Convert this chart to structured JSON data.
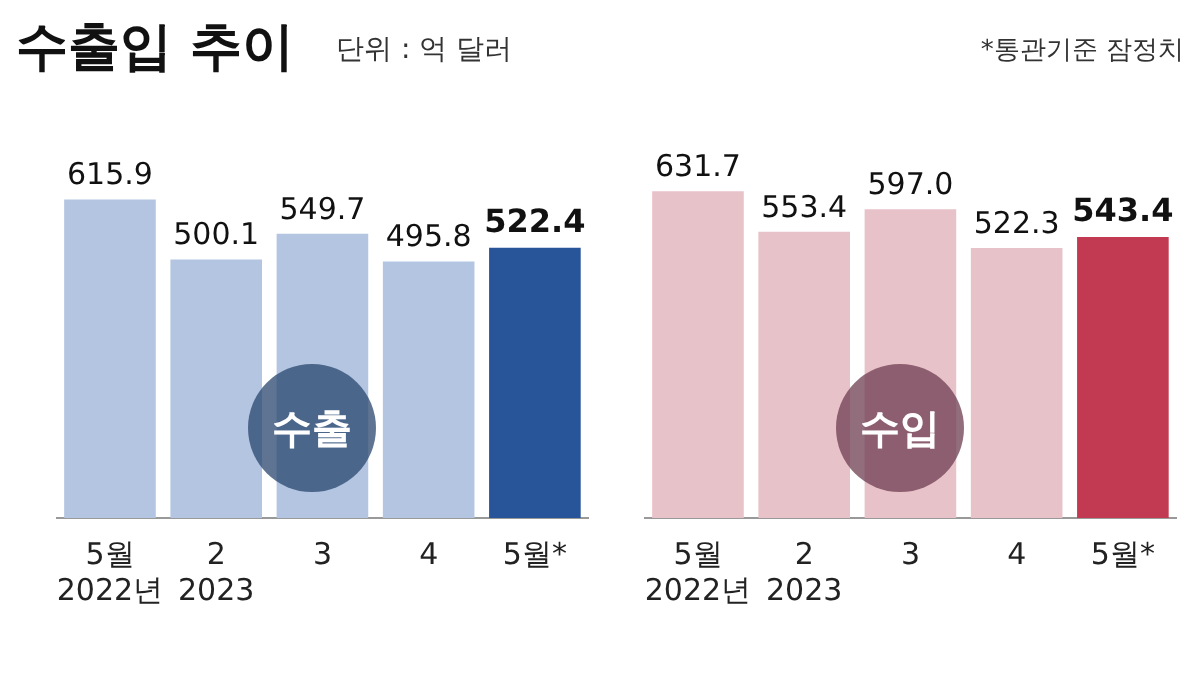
{
  "chart_data": [
    {
      "type": "bar",
      "title": "수출입 추이",
      "subtitle": "단위 : 억 달러",
      "categories": [
        "5월\n2022년",
        "2\n2023",
        "3",
        "4",
        "5월*"
      ],
      "series": [
        {
          "name": "수출",
          "values": [
            615.9,
            500.1,
            549.7,
            495.8,
            522.4
          ],
          "value_labels": [
            "615.9",
            "500.1",
            "549.7",
            "495.8",
            "522.4"
          ],
          "colors": [
            "#b3c5e1",
            "#b3c5e1",
            "#b3c5e1",
            "#b3c5e1",
            "#28549a"
          ]
        }
      ],
      "tick_labels": "x",
      "grid": false,
      "legend": false
    },
    {
      "type": "bar",
      "annotations": [
        "*통관기준 잠정치"
      ],
      "categories": [
        "5월\n2022년",
        "2\n2023",
        "3",
        "4",
        "5월*"
      ],
      "series": [
        {
          "name": "수입",
          "values": [
            631.7,
            553.4,
            597.0,
            522.3,
            543.4
          ],
          "value_labels": [
            "631.7",
            "553.4",
            "597.0",
            "522.3",
            "543.4"
          ],
          "colors": [
            "#e8c2c9",
            "#e8c2c9",
            "#e8c2c9",
            "#e8c2c9",
            "#c13a51"
          ]
        }
      ],
      "tick_labels": "x",
      "grid": false,
      "legend": false
    }
  ]
}
